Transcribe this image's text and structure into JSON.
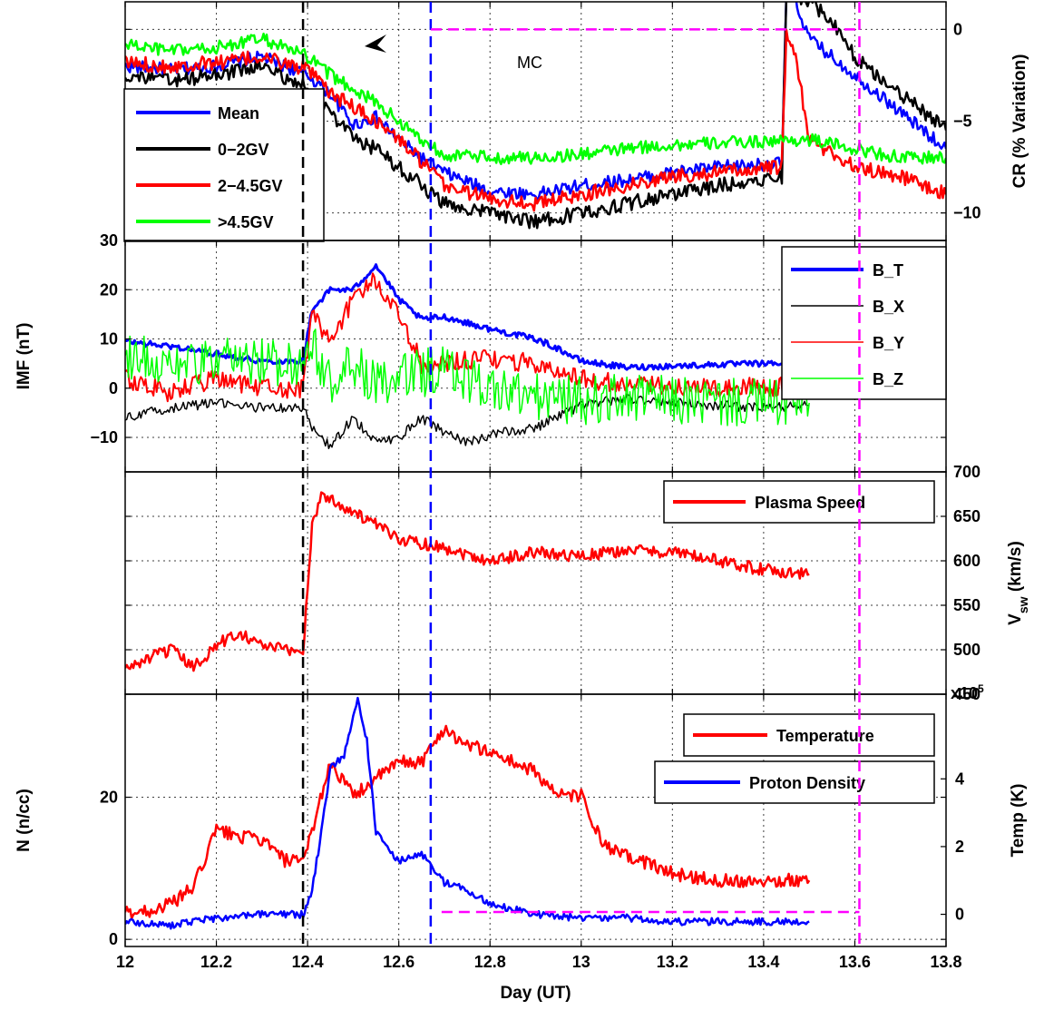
{
  "chart_data": [
    {
      "type": "line",
      "panel": "cosmic-ray",
      "ylabel_right": "CR (% Variation)",
      "ylim": [
        -11.5,
        1.5
      ],
      "yticks": [
        "0",
        "-5",
        "-10"
      ],
      "yticks_val": [
        0,
        -5,
        -10
      ],
      "annotation": "MC",
      "legend": [
        "Mean",
        "0-2GV",
        "2-4.5GV",
        ">4.5GV"
      ],
      "legend_placement": "left",
      "series": [
        {
          "name": "Mean",
          "color": "#0000ff",
          "x": [
            12.0,
            12.1,
            12.2,
            12.3,
            12.4,
            12.45,
            12.5,
            12.55,
            12.6,
            12.65,
            12.7,
            12.8,
            12.9,
            13.0,
            13.1,
            13.2,
            13.3,
            13.44,
            13.45,
            13.47,
            13.5,
            13.6,
            13.7,
            13.8
          ],
          "values": [
            -2.0,
            -2.2,
            -2.0,
            -1.5,
            -2.5,
            -3.5,
            -5.2,
            -4.8,
            -6.0,
            -7.0,
            -7.8,
            -8.8,
            -9.0,
            -8.5,
            -8.2,
            -7.8,
            -7.5,
            -7.3,
            2.0,
            1.5,
            -0.5,
            -2.5,
            -4.5,
            -6.5
          ],
          "jitter": 0.35
        },
        {
          "name": "0-2GV",
          "color": "#000000",
          "x": [
            12.0,
            12.1,
            12.2,
            12.3,
            12.4,
            12.45,
            12.5,
            12.55,
            12.6,
            12.65,
            12.7,
            12.8,
            12.9,
            13.0,
            13.1,
            13.2,
            13.3,
            13.44,
            13.45,
            13.5,
            13.55,
            13.6,
            13.7,
            13.8
          ],
          "values": [
            -2.5,
            -2.8,
            -2.5,
            -2.0,
            -3.2,
            -4.5,
            -6.0,
            -6.5,
            -7.5,
            -8.5,
            -9.5,
            -10.0,
            -10.5,
            -10.0,
            -9.5,
            -9.0,
            -8.5,
            -8.0,
            2.0,
            1.5,
            0.5,
            -1.5,
            -3.5,
            -5.5
          ],
          "jitter": 0.4
        },
        {
          "name": "2-4.5GV",
          "color": "#ff0000",
          "x": [
            12.0,
            12.1,
            12.2,
            12.3,
            12.4,
            12.45,
            12.5,
            12.55,
            12.6,
            12.65,
            12.7,
            12.8,
            12.9,
            13.0,
            13.1,
            13.2,
            13.3,
            13.44,
            13.45,
            13.47,
            13.5,
            13.6,
            13.7,
            13.8
          ],
          "values": [
            -1.8,
            -2.0,
            -1.8,
            -1.5,
            -2.2,
            -3.5,
            -4.2,
            -5.0,
            -6.0,
            -7.2,
            -8.5,
            -9.2,
            -9.5,
            -9.0,
            -8.5,
            -8.0,
            -7.8,
            -7.5,
            0.0,
            -1.5,
            -6.0,
            -7.5,
            -8.0,
            -9.0
          ],
          "jitter": 0.4
        },
        {
          "name": ">4.5GV",
          "color": "#00ff00",
          "x": [
            12.0,
            12.1,
            12.2,
            12.3,
            12.4,
            12.45,
            12.5,
            12.55,
            12.6,
            12.65,
            12.7,
            12.8,
            12.9,
            13.0,
            13.1,
            13.2,
            13.3,
            13.5,
            13.6,
            13.7,
            13.8
          ],
          "values": [
            -0.8,
            -1.2,
            -1.0,
            -0.5,
            -1.5,
            -2.5,
            -3.2,
            -4.0,
            -5.0,
            -6.0,
            -6.8,
            -7.0,
            -7.0,
            -6.8,
            -6.5,
            -6.3,
            -6.2,
            -6.0,
            -6.5,
            -7.0,
            -7.0
          ],
          "jitter": 0.35
        }
      ]
    },
    {
      "type": "line",
      "panel": "imf",
      "ylabel": "IMF (nT)",
      "ylim": [
        -17,
        30
      ],
      "yticks": [
        "30",
        "20",
        "10",
        "0",
        "-10"
      ],
      "yticks_val": [
        30,
        20,
        10,
        0,
        -10
      ],
      "legend": [
        "B_T",
        "B_X",
        "B_Y",
        "B_Z"
      ],
      "legend_placement": "top-right",
      "series": [
        {
          "name": "B_T",
          "color": "#0000ff",
          "width": 3,
          "x": [
            12.0,
            12.1,
            12.2,
            12.3,
            12.39,
            12.41,
            12.45,
            12.5,
            12.55,
            12.6,
            12.65,
            12.7,
            12.8,
            12.9,
            12.95,
            13.0,
            13.1,
            13.2,
            13.3,
            13.4,
            13.5
          ],
          "values": [
            9.5,
            8.5,
            7.0,
            5.5,
            5.5,
            16.0,
            20.0,
            20.0,
            25.0,
            18.0,
            14.0,
            14.5,
            12.0,
            10.0,
            8.0,
            5.5,
            4.2,
            4.5,
            4.8,
            5.0,
            5.0
          ],
          "jitter": 0.6
        },
        {
          "name": "B_X",
          "color": "#000000",
          "width": 1.5,
          "x": [
            12.0,
            12.1,
            12.2,
            12.3,
            12.39,
            12.41,
            12.45,
            12.5,
            12.55,
            12.6,
            12.65,
            12.7,
            12.75,
            12.8,
            12.9,
            13.0,
            13.1,
            13.2,
            13.3,
            13.4,
            13.5
          ],
          "values": [
            -6.0,
            -4.0,
            -3.0,
            -4.0,
            -4.0,
            -8.0,
            -12.0,
            -6.0,
            -11.0,
            -10.0,
            -6.0,
            -9.0,
            -11.0,
            -9.5,
            -8.0,
            -3.5,
            -2.0,
            -3.0,
            -3.5,
            -4.0,
            -3.5
          ],
          "jitter": 1.0
        },
        {
          "name": "B_Y",
          "color": "#ff0000",
          "width": 2,
          "x": [
            12.0,
            12.1,
            12.2,
            12.3,
            12.39,
            12.41,
            12.45,
            12.5,
            12.55,
            12.6,
            12.65,
            12.7,
            12.8,
            12.9,
            13.0,
            13.1,
            13.2,
            13.3,
            13.4,
            13.5
          ],
          "values": [
            2.0,
            -1.0,
            2.0,
            0.0,
            0.0,
            15.0,
            10.0,
            18.0,
            22.0,
            15.0,
            5.0,
            5.0,
            6.0,
            5.0,
            2.0,
            0.5,
            0.5,
            0.0,
            0.5,
            0.0
          ],
          "jitter": 2.0
        },
        {
          "name": "B_Z",
          "color": "#00ff00",
          "width": 1.5,
          "x": [
            12.0,
            12.1,
            12.2,
            12.3,
            12.39,
            12.41,
            12.45,
            12.5,
            12.55,
            12.6,
            12.65,
            12.7,
            12.8,
            12.9,
            13.0,
            13.1,
            13.2,
            13.3,
            13.4,
            13.5
          ],
          "values": [
            7.0,
            5.0,
            5.0,
            5.5,
            5.0,
            10.0,
            0.0,
            5.0,
            0.0,
            2.0,
            3.0,
            4.0,
            0.0,
            -2.0,
            -2.5,
            -2.0,
            -2.5,
            -3.0,
            -3.0,
            -3.0
          ],
          "jitter": 5.0
        }
      ]
    },
    {
      "type": "line",
      "panel": "plasma-speed",
      "ylabel_right": "V_sw (km/s)",
      "ylim": [
        450,
        700
      ],
      "yticks": [
        "700",
        "650",
        "600",
        "550",
        "500",
        "450"
      ],
      "yticks_val": [
        700,
        650,
        600,
        550,
        500,
        450
      ],
      "legend": [
        "Plasma Speed"
      ],
      "legend_placement": "top-right",
      "series": [
        {
          "name": "Plasma Speed",
          "color": "#ff0000",
          "width": 2.5,
          "x": [
            12.0,
            12.05,
            12.1,
            12.15,
            12.2,
            12.25,
            12.3,
            12.35,
            12.39,
            12.41,
            12.43,
            12.5,
            12.6,
            12.7,
            12.8,
            12.9,
            13.0,
            13.1,
            13.2,
            13.3,
            13.4,
            13.5
          ],
          "values": [
            478,
            490,
            500,
            480,
            505,
            520,
            505,
            500,
            498,
            640,
            675,
            655,
            625,
            615,
            600,
            610,
            605,
            612,
            610,
            600,
            590,
            585
          ],
          "jitter": 7
        }
      ]
    },
    {
      "type": "line",
      "panel": "density-temperature",
      "ylabel": "N (n/cc)",
      "ylabel_right": "Temp (K)",
      "xlabel": "Day (UT)",
      "ylim": [
        -1,
        34.5
      ],
      "yticks": [
        "20",
        "0"
      ],
      "yticks_val": [
        20,
        0
      ],
      "right_yticks": [
        "4",
        "2",
        "0"
      ],
      "right_yticks_val": [
        4,
        2,
        0
      ],
      "right_ylim": [
        -0.95,
        6.5
      ],
      "exponent_label": "x10^5",
      "xlim": [
        12.0,
        13.8
      ],
      "xticks": [
        "12",
        "12.2",
        "12.4",
        "12.6",
        "12.8",
        "13",
        "13.2",
        "13.4",
        "13.6",
        "13.8"
      ],
      "xticks_val": [
        12.0,
        12.2,
        12.4,
        12.6,
        12.8,
        13.0,
        13.2,
        13.4,
        13.6,
        13.8
      ],
      "legend": [
        "Temperature",
        "Proton Density"
      ],
      "legend_placement": "top-right",
      "series": [
        {
          "name": "Temperature",
          "color": "#ff0000",
          "width": 2.5,
          "axis": "right",
          "x": [
            12.0,
            12.05,
            12.1,
            12.15,
            12.2,
            12.25,
            12.3,
            12.35,
            12.39,
            12.41,
            12.45,
            12.5,
            12.55,
            12.6,
            12.65,
            12.7,
            12.75,
            12.8,
            12.85,
            12.9,
            12.95,
            13.0,
            13.05,
            13.1,
            13.15,
            13.2,
            13.3,
            13.4,
            13.5
          ],
          "values": [
            0.05,
            0.1,
            0.3,
            0.8,
            2.5,
            2.3,
            2.2,
            1.6,
            1.5,
            2.5,
            4.5,
            3.5,
            4.0,
            4.5,
            4.5,
            5.5,
            5.0,
            4.8,
            4.5,
            4.2,
            3.5,
            3.5,
            2.0,
            1.7,
            1.5,
            1.2,
            1.0,
            1.0,
            1.0
          ],
          "jitter": 0.2
        },
        {
          "name": "Proton Density",
          "color": "#0000ff",
          "width": 2.5,
          "axis": "left",
          "x": [
            12.0,
            12.1,
            12.2,
            12.3,
            12.39,
            12.41,
            12.43,
            12.45,
            12.48,
            12.51,
            12.53,
            12.55,
            12.6,
            12.65,
            12.7,
            12.75,
            12.8,
            12.9,
            13.0,
            13.1,
            13.2,
            13.3,
            13.4,
            13.5
          ],
          "values": [
            2.5,
            2.0,
            3.0,
            3.5,
            3.5,
            7.0,
            15.0,
            24.0,
            26.0,
            34.0,
            28.0,
            15.0,
            11.0,
            12.0,
            8.0,
            7.0,
            5.0,
            3.5,
            3.0,
            3.0,
            2.5,
            2.5,
            2.5,
            2.5
          ],
          "jitter": 0.5
        }
      ]
    }
  ],
  "x_range": [
    12.0,
    13.8
  ],
  "event_markers": [
    {
      "x": 12.39,
      "color": "#000000"
    },
    {
      "x": 12.67,
      "color": "#0000ff"
    },
    {
      "x": 13.61,
      "color": "#ff00ff"
    }
  ],
  "mc_box": {
    "x1": 12.67,
    "x2": 13.61,
    "color": "#ff00ff"
  }
}
